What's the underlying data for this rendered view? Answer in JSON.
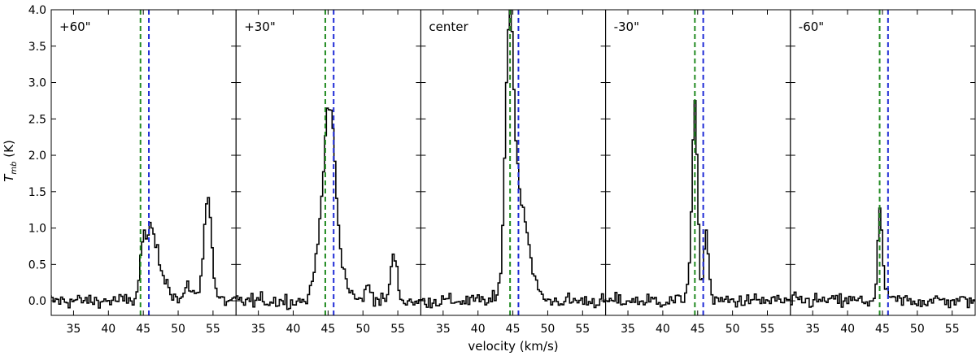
{
  "chart_data": {
    "type": "line",
    "style": "step",
    "xlabel": "velocity (km/s)",
    "ylabel_main": "T",
    "ylabel_sub": "mb",
    "ylabel_unit": " (K)",
    "xlim": [
      31.8,
      58.3
    ],
    "ylim": [
      -0.2,
      4.0
    ],
    "xticks": [
      35,
      40,
      45,
      50,
      55
    ],
    "xtick_labels": [
      "35",
      "40",
      "45",
      "50",
      "55"
    ],
    "yticks": [
      0.0,
      0.5,
      1.0,
      1.5,
      2.0,
      2.5,
      3.0,
      3.5,
      4.0
    ],
    "ytick_labels": [
      "0.0",
      "0.5",
      "1.0",
      "1.5",
      "2.0",
      "2.5",
      "3.0",
      "3.5",
      "4.0"
    ],
    "reference_lines": [
      {
        "x": 44.6,
        "color": "#228b22"
      },
      {
        "x": 45.8,
        "color": "#1f2bd6"
      }
    ],
    "panels": [
      {
        "label": "+60\"",
        "components": [
          {
            "center": 46.0,
            "amp": 0.95,
            "sigma": 0.9
          },
          {
            "center": 44.8,
            "amp": 0.45,
            "sigma": 0.4
          },
          {
            "center": 48.0,
            "amp": 0.25,
            "sigma": 0.8
          },
          {
            "center": 51.5,
            "amp": 0.2,
            "sigma": 0.6
          },
          {
            "center": 54.1,
            "amp": 1.45,
            "sigma": 0.55
          }
        ]
      },
      {
        "label": "+30\"",
        "components": [
          {
            "center": 45.2,
            "amp": 2.35,
            "sigma": 0.75
          },
          {
            "center": 43.9,
            "amp": 0.9,
            "sigma": 0.8
          },
          {
            "center": 46.8,
            "amp": 0.35,
            "sigma": 0.9
          },
          {
            "center": 50.7,
            "amp": 0.2,
            "sigma": 0.5
          },
          {
            "center": 54.3,
            "amp": 0.62,
            "sigma": 0.45
          }
        ]
      },
      {
        "label": "center",
        "components": [
          {
            "center": 44.4,
            "amp": 3.75,
            "sigma": 0.62
          },
          {
            "center": 46.0,
            "amp": 1.3,
            "sigma": 0.9
          },
          {
            "center": 47.6,
            "amp": 0.25,
            "sigma": 0.8
          }
        ]
      },
      {
        "label": "-30\"",
        "components": [
          {
            "center": 44.5,
            "amp": 2.15,
            "sigma": 0.35
          },
          {
            "center": 44.2,
            "amp": 0.6,
            "sigma": 0.6
          },
          {
            "center": 46.1,
            "amp": 0.95,
            "sigma": 0.35
          }
        ]
      },
      {
        "label": "-60\"",
        "components": [
          {
            "center": 44.5,
            "amp": 1.25,
            "sigma": 0.28
          },
          {
            "center": 45.2,
            "amp": 0.2,
            "sigma": 0.4
          }
        ]
      }
    ],
    "noise_rms": 0.07,
    "channel_width": 0.27
  }
}
